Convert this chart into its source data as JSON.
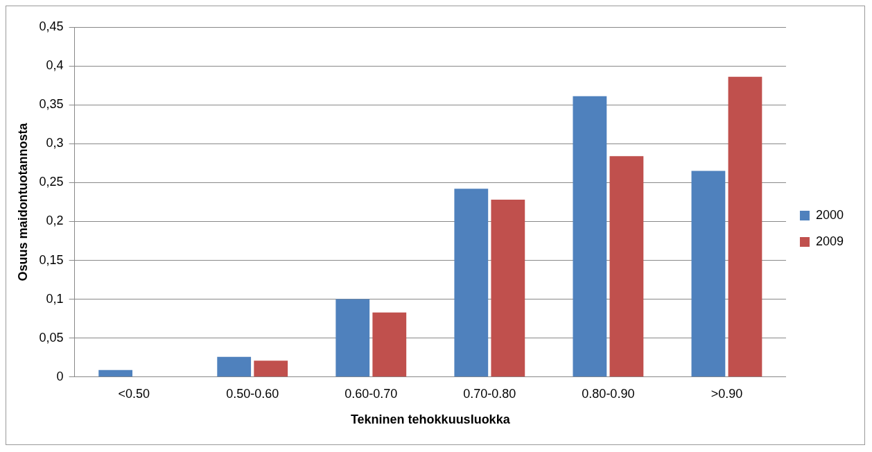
{
  "chart_data": {
    "type": "bar",
    "xlabel": "Tekninen tehokkuusluokka",
    "ylabel": "Osuus maidontuotannosta",
    "categories": [
      "<0.50",
      "0.50-0.60",
      "0.60-0.70",
      "0.70-0.80",
      "0.80-0.90",
      ">0.90"
    ],
    "series": [
      {
        "name": "2000",
        "color": "#4f81bd",
        "values": [
          0.009,
          0.026,
          0.1,
          0.242,
          0.361,
          0.265
        ]
      },
      {
        "name": "2009",
        "color": "#c0504d",
        "values": [
          0,
          0.021,
          0.083,
          0.228,
          0.284,
          0.386
        ]
      }
    ],
    "ylim": [
      0,
      0.45
    ],
    "yticks": [
      {
        "value": 0,
        "label": "0"
      },
      {
        "value": 0.05,
        "label": "0,05"
      },
      {
        "value": 0.1,
        "label": "0,1"
      },
      {
        "value": 0.15,
        "label": "0,15"
      },
      {
        "value": 0.2,
        "label": "0,2"
      },
      {
        "value": 0.25,
        "label": "0,25"
      },
      {
        "value": 0.3,
        "label": "0,3"
      },
      {
        "value": 0.35,
        "label": "0,35"
      },
      {
        "value": 0.4,
        "label": "0,4"
      },
      {
        "value": 0.45,
        "label": "0,45"
      }
    ],
    "grid": "y",
    "legend": "right"
  }
}
